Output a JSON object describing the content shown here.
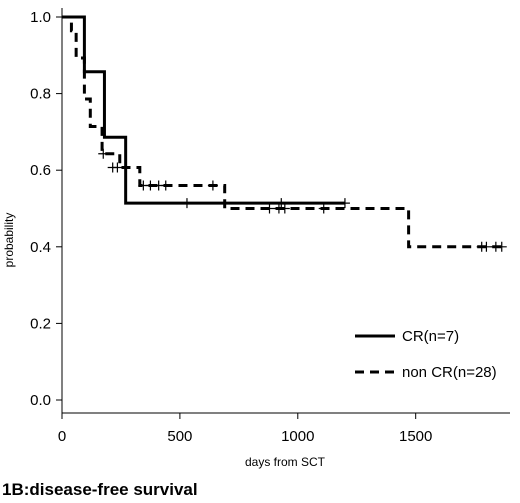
{
  "chart_data": {
    "type": "line",
    "title": "",
    "caption": "1B:disease-free survival",
    "xlabel": "days from SCT",
    "ylabel": "probability",
    "xlim": [
      0,
      1900
    ],
    "ylim": [
      0,
      1.0
    ],
    "xticks": [
      0,
      500,
      1000,
      1500
    ],
    "xtick_labels": [
      "0",
      "500",
      "1000",
      "1500"
    ],
    "yticks": [
      0.0,
      0.2,
      0.4,
      0.6,
      0.8,
      1.0
    ],
    "ytick_labels": [
      "0.0",
      "0.2",
      "0.4",
      "0.6",
      "0.8",
      "1.0"
    ],
    "grid": false,
    "legend_position": "bottom-right",
    "series": [
      {
        "name": "CR(n=7)",
        "style": "solid",
        "color": "#000000",
        "steps": [
          {
            "x": 0,
            "y": 1.0
          },
          {
            "x": 95,
            "y": 0.857
          },
          {
            "x": 180,
            "y": 0.686
          },
          {
            "x": 270,
            "y": 0.514
          },
          {
            "x": 1200,
            "y": 0.514
          }
        ],
        "censors": [
          {
            "x": 530,
            "y": 0.514
          },
          {
            "x": 930,
            "y": 0.514
          },
          {
            "x": 1200,
            "y": 0.514
          }
        ]
      },
      {
        "name": "non CR(n=28)",
        "style": "dashed",
        "color": "#000000",
        "steps": [
          {
            "x": 0,
            "y": 1.0
          },
          {
            "x": 40,
            "y": 0.964
          },
          {
            "x": 60,
            "y": 0.893
          },
          {
            "x": 95,
            "y": 0.786
          },
          {
            "x": 120,
            "y": 0.714
          },
          {
            "x": 170,
            "y": 0.643
          },
          {
            "x": 245,
            "y": 0.607
          },
          {
            "x": 330,
            "y": 0.56
          },
          {
            "x": 690,
            "y": 0.5
          },
          {
            "x": 1470,
            "y": 0.4
          },
          {
            "x": 1870,
            "y": 0.4
          }
        ],
        "censors": [
          {
            "x": 175,
            "y": 0.643
          },
          {
            "x": 215,
            "y": 0.607
          },
          {
            "x": 235,
            "y": 0.607
          },
          {
            "x": 345,
            "y": 0.56
          },
          {
            "x": 375,
            "y": 0.56
          },
          {
            "x": 410,
            "y": 0.56
          },
          {
            "x": 440,
            "y": 0.56
          },
          {
            "x": 640,
            "y": 0.56
          },
          {
            "x": 880,
            "y": 0.5
          },
          {
            "x": 920,
            "y": 0.5
          },
          {
            "x": 945,
            "y": 0.5
          },
          {
            "x": 1110,
            "y": 0.5
          },
          {
            "x": 1780,
            "y": 0.4
          },
          {
            "x": 1800,
            "y": 0.4
          },
          {
            "x": 1840,
            "y": 0.4
          },
          {
            "x": 1865,
            "y": 0.4
          }
        ]
      }
    ]
  }
}
